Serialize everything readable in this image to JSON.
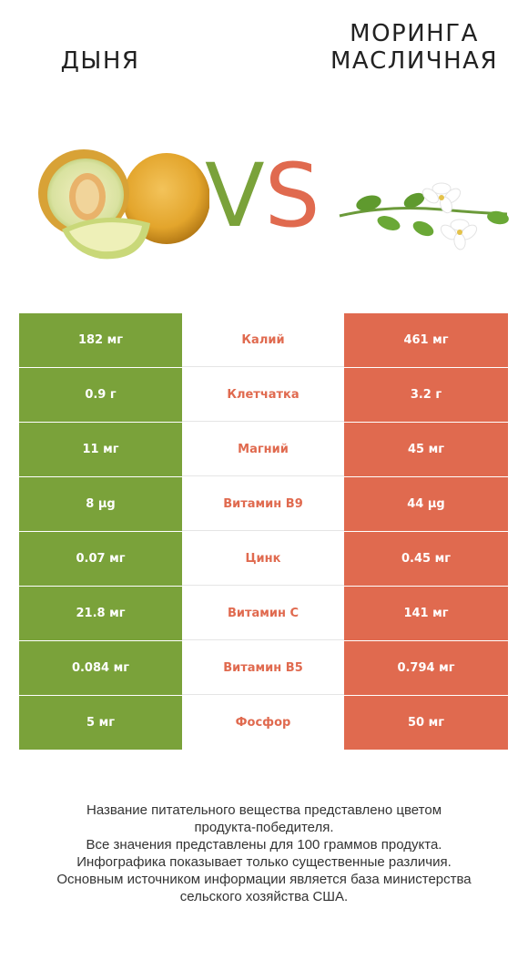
{
  "header": {
    "left_title": "ДЫНЯ",
    "right_title_line1": "МОРИНГА",
    "right_title_line2": "МАСЛИЧНАЯ",
    "vs_v": "V",
    "vs_s": "S"
  },
  "colors": {
    "winner_left": "#7aa23a",
    "winner_right": "#e06a4f",
    "nutrient_text": "#e06a4f"
  },
  "rows": [
    {
      "left": "182 мг",
      "nutrient": "Калий",
      "right": "461 мг"
    },
    {
      "left": "0.9 г",
      "nutrient": "Клетчатка",
      "right": "3.2 г"
    },
    {
      "left": "11 мг",
      "nutrient": "Магний",
      "right": "45 мг"
    },
    {
      "left": "8 µg",
      "nutrient": "Витамин B9",
      "right": "44 µg"
    },
    {
      "left": "0.07 мг",
      "nutrient": "Цинк",
      "right": "0.45 мг"
    },
    {
      "left": "21.8 мг",
      "nutrient": "Витамин C",
      "right": "141 мг"
    },
    {
      "left": "0.084 мг",
      "nutrient": "Витамин B5",
      "right": "0.794 мг"
    },
    {
      "left": "5 мг",
      "nutrient": "Фосфор",
      "right": "50 мг"
    }
  ],
  "footer": {
    "line1": "Название питательного вещества представлено цветом",
    "line2": "продукта-победителя.",
    "line3": "Все значения представлены для 100 граммов продукта.",
    "line4": "Инфографика показывает только существенные различия.",
    "line5": "Основным источником информации является база министерства",
    "line6": "сельского хозяйства США."
  }
}
